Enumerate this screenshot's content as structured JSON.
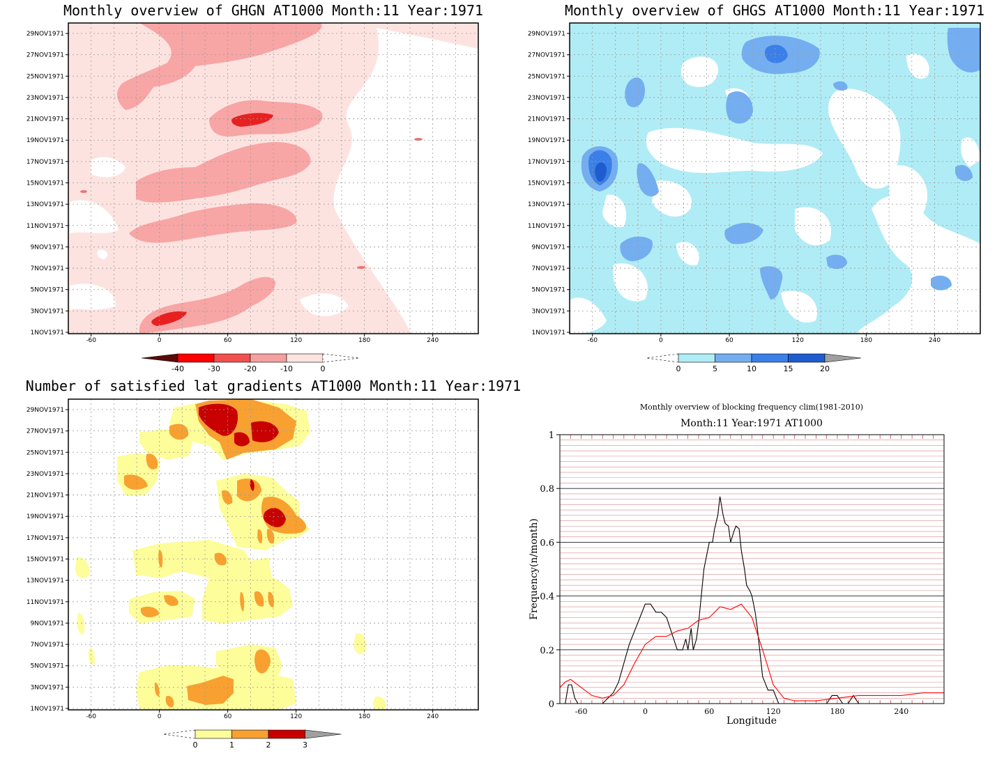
{
  "chart_data": [
    {
      "type": "heatmap",
      "panel": "ghgn",
      "title": "Monthly overview of GHGN AT1000 Month:11 Year:1971",
      "y_ticks": [
        "1NOV1971",
        "3NOV1971",
        "5NOV1971",
        "7NOV1971",
        "9NOV1971",
        "11NOV1971",
        "13NOV1971",
        "15NOV1971",
        "17NOV1971",
        "19NOV1971",
        "21NOV1971",
        "23NOV1971",
        "25NOV1971",
        "27NOV1971",
        "29NOV1971"
      ],
      "x_ticks": [
        "-60",
        "0",
        "60",
        "120",
        "180",
        "240"
      ],
      "xlim": [
        -80,
        280
      ],
      "colorbar": {
        "labels": [
          "-40",
          "-30",
          "-20",
          "-10",
          "0"
        ],
        "colors": [
          "#5a0a0a",
          "#ff0000",
          "#f05050",
          "#f5a0a0",
          "#fde3e0"
        ]
      },
      "colors": {
        "lightest": "#fde3e0",
        "light": "#f8a5a5",
        "mid": "#f07070",
        "dark": "#e82020"
      }
    },
    {
      "type": "heatmap",
      "panel": "ghgs",
      "title": "Monthly overview of GHGS AT1000 Month:11 Year:1971",
      "y_ticks": [
        "1NOV1971",
        "3NOV1971",
        "5NOV1971",
        "7NOV1971",
        "9NOV1971",
        "11NOV1971",
        "13NOV1971",
        "15NOV1971",
        "17NOV1971",
        "19NOV1971",
        "21NOV1971",
        "23NOV1971",
        "25NOV1971",
        "27NOV1971",
        "29NOV1971"
      ],
      "x_ticks": [
        "-60",
        "0",
        "60",
        "120",
        "180",
        "240"
      ],
      "xlim": [
        -80,
        280
      ],
      "colorbar": {
        "labels": [
          "0",
          "5",
          "10",
          "15",
          "20"
        ],
        "colors": [
          "#b0ecf5",
          "#74aef0",
          "#3b7fe8",
          "#1f5cd0",
          "#a0a0a0"
        ]
      },
      "colors": {
        "light": "#b0ecf5",
        "mid": "#74aef0",
        "dark": "#3b7fe8",
        "darkest": "#1f5cd0"
      }
    },
    {
      "type": "heatmap",
      "panel": "lat-gradients",
      "title": "Number of satisfied lat gradients AT1000 Month:11 Year:1971",
      "y_ticks": [
        "1NOV1971",
        "3NOV1971",
        "5NOV1971",
        "7NOV1971",
        "9NOV1971",
        "11NOV1971",
        "13NOV1971",
        "15NOV1971",
        "17NOV1971",
        "19NOV1971",
        "21NOV1971",
        "23NOV1971",
        "25NOV1971",
        "27NOV1971",
        "29NOV1971"
      ],
      "x_ticks": [
        "-60",
        "0",
        "60",
        "120",
        "180",
        "240"
      ],
      "xlim": [
        -80,
        280
      ],
      "colorbar": {
        "labels": [
          "0",
          "1",
          "2",
          "3"
        ],
        "colors": [
          "#fdfd9a",
          "#f8a030",
          "#c80000",
          "#a0a0a0"
        ]
      },
      "colors": {
        "one": "#fdfd9a",
        "two": "#f8a030",
        "three": "#c80000"
      }
    },
    {
      "type": "line",
      "panel": "blocking-frequency",
      "title": "Monthly overview of blocking frequency clim(1981-2010)",
      "subtitle": "Month:11 Year:1971  AT1000",
      "xlabel": "Longitude",
      "ylabel": "Frequency(n/month)",
      "xlim": [
        -80,
        280
      ],
      "ylim": [
        0,
        1
      ],
      "x_ticks": [
        "-60",
        "0",
        "60",
        "120",
        "180",
        "240"
      ],
      "y_ticks": [
        "0",
        "0.2",
        "0.4",
        "0.6",
        "0.8",
        "1"
      ],
      "grid": true,
      "series": [
        {
          "color": "#000000",
          "x": [
            -80,
            -75,
            -72,
            -69,
            -66,
            -63,
            -60,
            -57,
            -50,
            -40,
            -30,
            -25,
            -20,
            -15,
            -10,
            -5,
            0,
            5,
            10,
            15,
            20,
            25,
            30,
            35,
            38,
            40,
            43,
            45,
            48,
            50,
            55,
            60,
            63,
            65,
            68,
            70,
            73,
            75,
            78,
            80,
            83,
            85,
            88,
            90,
            93,
            95,
            98,
            100,
            103,
            105,
            110,
            115,
            120,
            125,
            130,
            135,
            150,
            170,
            175,
            180,
            185,
            190,
            195,
            200,
            210,
            240,
            270
          ],
          "values": [
            0.0,
            0.0,
            0.07,
            0.07,
            0.02,
            0.0,
            0.0,
            0.0,
            0.0,
            0.0,
            0.04,
            0.08,
            0.15,
            0.22,
            0.27,
            0.32,
            0.37,
            0.37,
            0.34,
            0.34,
            0.32,
            0.26,
            0.2,
            0.2,
            0.24,
            0.2,
            0.28,
            0.2,
            0.24,
            0.3,
            0.5,
            0.6,
            0.6,
            0.65,
            0.7,
            0.77,
            0.7,
            0.67,
            0.66,
            0.6,
            0.64,
            0.66,
            0.65,
            0.57,
            0.5,
            0.44,
            0.42,
            0.4,
            0.34,
            0.28,
            0.1,
            0.05,
            0.05,
            0.0,
            0.0,
            0.0,
            0.0,
            0.0,
            0.03,
            0.03,
            0.0,
            0.0,
            0.03,
            0.0,
            0.0,
            0.0,
            0.0
          ]
        },
        {
          "color": "#ff0000",
          "x": [
            -80,
            -75,
            -70,
            -60,
            -50,
            -40,
            -30,
            -20,
            -10,
            0,
            10,
            20,
            30,
            40,
            50,
            60,
            70,
            80,
            90,
            100,
            110,
            120,
            130,
            140,
            160,
            200,
            240,
            260,
            270,
            280
          ],
          "values": [
            0.06,
            0.08,
            0.09,
            0.06,
            0.03,
            0.02,
            0.03,
            0.07,
            0.15,
            0.22,
            0.25,
            0.25,
            0.27,
            0.28,
            0.31,
            0.32,
            0.36,
            0.35,
            0.37,
            0.32,
            0.2,
            0.07,
            0.02,
            0.01,
            0.01,
            0.03,
            0.03,
            0.04,
            0.04,
            0.04
          ]
        }
      ]
    }
  ]
}
